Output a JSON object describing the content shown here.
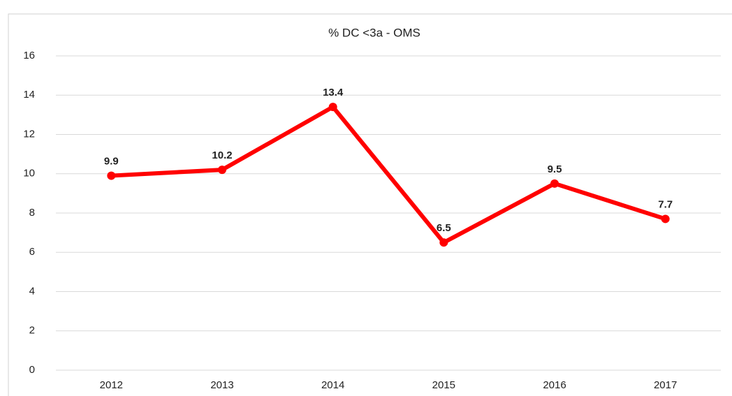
{
  "chart_data": {
    "type": "line",
    "title": "% DC <3a - OMS",
    "categories": [
      "2012",
      "2013",
      "2014",
      "2015",
      "2016",
      "2017"
    ],
    "values": [
      9.9,
      10.2,
      13.4,
      6.5,
      9.5,
      7.7
    ],
    "color": "#ff0000",
    "ylim": [
      0,
      16
    ],
    "yticks": [
      0,
      2,
      4,
      6,
      8,
      10,
      12,
      14,
      16
    ],
    "grid": true
  }
}
